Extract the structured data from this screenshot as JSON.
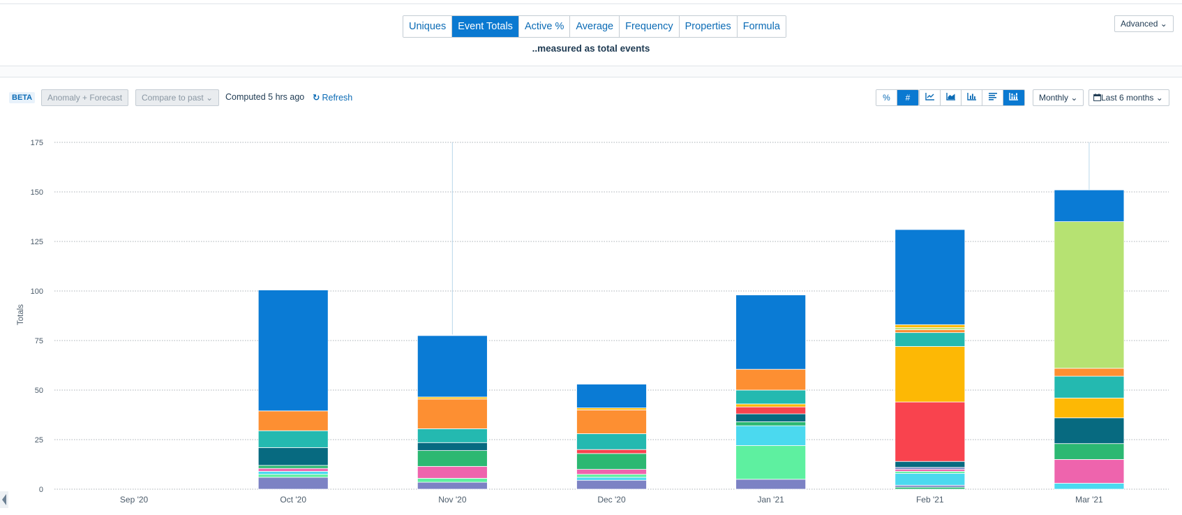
{
  "metric_tabs": [
    "Uniques",
    "Event Totals",
    "Active %",
    "Average",
    "Frequency",
    "Properties",
    "Formula"
  ],
  "active_metric": "Event Totals",
  "measured_text": "..measured as total events",
  "advanced_label": "Advanced",
  "beta_label": "BETA",
  "anomaly_label": "Anomaly + Forecast",
  "compare_label": "Compare to past",
  "computed_text": "Computed 5 hrs ago",
  "refresh_label": "Refresh",
  "percent_label": "%",
  "number_label": "#",
  "interval_label": "Monthly",
  "range_label": "Last 6 months",
  "colors": {
    "accent": "#0a79d1",
    "series": [
      "#7c82c4",
      "#4bd9ef",
      "#5ef0a0",
      "#ee64ad",
      "#2cb872",
      "#076a80",
      "#f9434e",
      "#fdb805",
      "#24b9b0",
      "#fd8f32",
      "#b6e272",
      "#0a7bd5"
    ]
  },
  "chart_data": {
    "type": "bar",
    "stacked": true,
    "ylabel": "Totals",
    "ylim": [
      0,
      175
    ],
    "yticks": [
      0,
      25,
      50,
      75,
      100,
      125,
      150,
      175
    ],
    "grid": true,
    "categories": [
      "Sep '20",
      "Oct '20",
      "Nov '20",
      "Dec '20",
      "Jan '21",
      "Feb '21",
      "Mar '21"
    ],
    "totals": [
      0,
      101,
      78,
      53,
      98,
      130,
      151
    ],
    "stacks": [
      [],
      [
        [
          6,
          "#7c82c4"
        ],
        [
          1.5,
          "#5ef0a0"
        ],
        [
          1.5,
          "#4bd9ef"
        ],
        [
          1.5,
          "#ee64ad"
        ],
        [
          1.5,
          "#2cb872"
        ],
        [
          9,
          "#076a80"
        ],
        [
          8.5,
          "#24b9b0"
        ],
        [
          10,
          "#fd8f32"
        ],
        [
          61,
          "#0a7bd5"
        ]
      ],
      [
        [
          3.5,
          "#7c82c4"
        ],
        [
          2,
          "#5ef0a0"
        ],
        [
          6,
          "#ee64ad"
        ],
        [
          8,
          "#2cb872"
        ],
        [
          4,
          "#076a80"
        ],
        [
          7,
          "#24b9b0"
        ],
        [
          15,
          "#fd8f32"
        ],
        [
          1,
          "#fdb805"
        ],
        [
          31,
          "#0a7bd5"
        ]
      ],
      [
        [
          4.5,
          "#7c82c4"
        ],
        [
          1.5,
          "#4bd9ef"
        ],
        [
          1.5,
          "#5ef0a0"
        ],
        [
          2.5,
          "#ee64ad"
        ],
        [
          8,
          "#2cb872"
        ],
        [
          2,
          "#f9434e"
        ],
        [
          8,
          "#24b9b0"
        ],
        [
          12,
          "#fd8f32"
        ],
        [
          1,
          "#fdb805"
        ],
        [
          12,
          "#0a7bd5"
        ]
      ],
      [
        [
          5,
          "#7c82c4"
        ],
        [
          17,
          "#5ef0a0"
        ],
        [
          10,
          "#4bd9ef"
        ],
        [
          2,
          "#2cb872"
        ],
        [
          4,
          "#076a80"
        ],
        [
          3.5,
          "#f9434e"
        ],
        [
          1.5,
          "#fdb805"
        ],
        [
          7,
          "#24b9b0"
        ],
        [
          10.5,
          "#fd8f32"
        ],
        [
          37.5,
          "#0a7bd5"
        ]
      ],
      [
        [
          1,
          "#2cb872"
        ],
        [
          1,
          "#7c82c4"
        ],
        [
          6,
          "#4bd9ef"
        ],
        [
          1,
          "#5ef0a0"
        ],
        [
          1,
          "#ee64ad"
        ],
        [
          1,
          "#7c82c4"
        ],
        [
          3,
          "#076a80"
        ],
        [
          30,
          "#f9434e"
        ],
        [
          28,
          "#fdb805"
        ],
        [
          7,
          "#24b9b0"
        ],
        [
          1.5,
          "#fd8f32"
        ],
        [
          1,
          "#b6e272"
        ],
        [
          1.5,
          "#fdb805"
        ],
        [
          48,
          "#0a7bd5"
        ]
      ],
      [
        [
          3,
          "#4bd9ef"
        ],
        [
          12,
          "#ee64ad"
        ],
        [
          8,
          "#2cb872"
        ],
        [
          13,
          "#076a80"
        ],
        [
          10,
          "#fdb805"
        ],
        [
          11,
          "#24b9b0"
        ],
        [
          4,
          "#fd8f32"
        ],
        [
          74,
          "#b6e272"
        ],
        [
          16,
          "#0a7bd5"
        ]
      ]
    ]
  }
}
